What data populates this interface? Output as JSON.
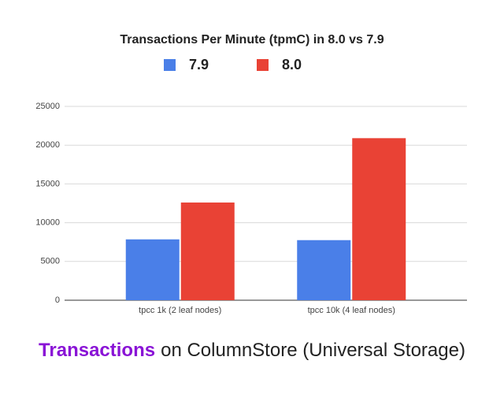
{
  "chart_data": {
    "type": "bar",
    "title": "Transactions Per Minute (tpmC) in 8.0 vs 7.9",
    "categories": [
      "tpcc 1k (2 leaf nodes)",
      "tpcc 10k (4 leaf nodes)"
    ],
    "series": [
      {
        "name": "7.9",
        "color": "#4a7fe8",
        "values": [
          7850,
          7750
        ]
      },
      {
        "name": "8.0",
        "color": "#e94235",
        "values": [
          12600,
          20900
        ]
      }
    ],
    "ylim": [
      0,
      25000
    ],
    "yticks": [
      0,
      5000,
      10000,
      15000,
      20000,
      25000
    ],
    "grid": true,
    "caption_highlight": "Transactions",
    "caption_highlight_color": "#8a14d6",
    "caption": "on ColumnStore (Universal Storage)"
  }
}
